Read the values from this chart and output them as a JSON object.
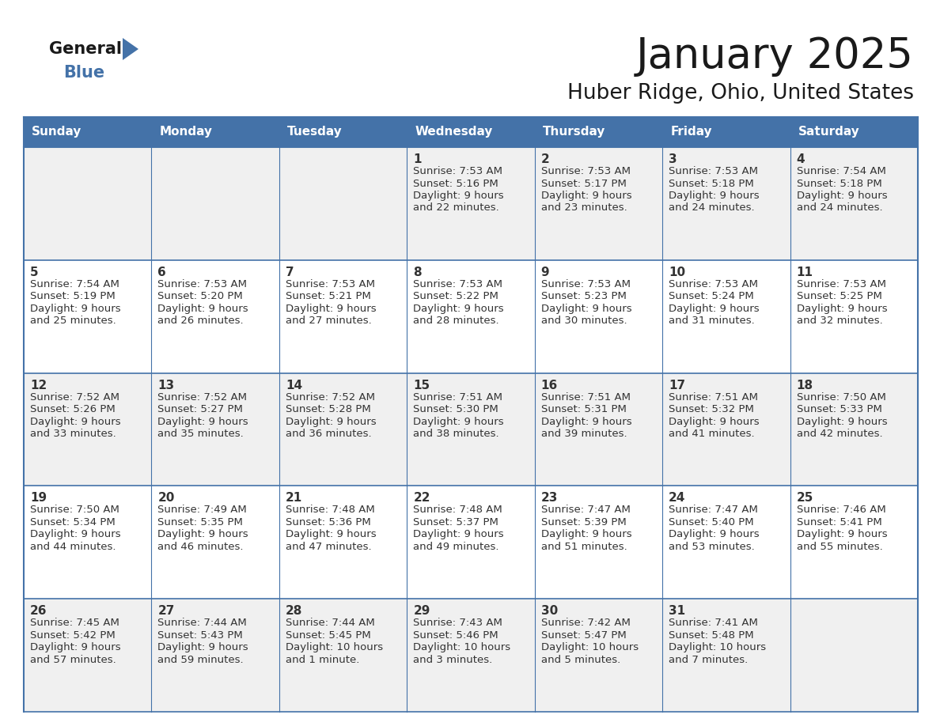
{
  "title": "January 2025",
  "subtitle": "Huber Ridge, Ohio, United States",
  "days_of_week": [
    "Sunday",
    "Monday",
    "Tuesday",
    "Wednesday",
    "Thursday",
    "Friday",
    "Saturday"
  ],
  "header_bg": "#4472A8",
  "header_text": "#FFFFFF",
  "cell_bg_light": "#F0F0F0",
  "cell_bg_white": "#FFFFFF",
  "border_color": "#4472A8",
  "text_color": "#333333",
  "title_color": "#1a1a1a",
  "logo_general_color": "#1a1a1a",
  "logo_blue_color": "#4472A8",
  "logo_triangle_color": "#4472A8",
  "days": [
    {
      "day": 1,
      "col": 3,
      "row": 0,
      "sunrise": "7:53 AM",
      "sunset": "5:16 PM",
      "daylight_line1": "Daylight: 9 hours",
      "daylight_line2": "and 22 minutes."
    },
    {
      "day": 2,
      "col": 4,
      "row": 0,
      "sunrise": "7:53 AM",
      "sunset": "5:17 PM",
      "daylight_line1": "Daylight: 9 hours",
      "daylight_line2": "and 23 minutes."
    },
    {
      "day": 3,
      "col": 5,
      "row": 0,
      "sunrise": "7:53 AM",
      "sunset": "5:18 PM",
      "daylight_line1": "Daylight: 9 hours",
      "daylight_line2": "and 24 minutes."
    },
    {
      "day": 4,
      "col": 6,
      "row": 0,
      "sunrise": "7:54 AM",
      "sunset": "5:18 PM",
      "daylight_line1": "Daylight: 9 hours",
      "daylight_line2": "and 24 minutes."
    },
    {
      "day": 5,
      "col": 0,
      "row": 1,
      "sunrise": "7:54 AM",
      "sunset": "5:19 PM",
      "daylight_line1": "Daylight: 9 hours",
      "daylight_line2": "and 25 minutes."
    },
    {
      "day": 6,
      "col": 1,
      "row": 1,
      "sunrise": "7:53 AM",
      "sunset": "5:20 PM",
      "daylight_line1": "Daylight: 9 hours",
      "daylight_line2": "and 26 minutes."
    },
    {
      "day": 7,
      "col": 2,
      "row": 1,
      "sunrise": "7:53 AM",
      "sunset": "5:21 PM",
      "daylight_line1": "Daylight: 9 hours",
      "daylight_line2": "and 27 minutes."
    },
    {
      "day": 8,
      "col": 3,
      "row": 1,
      "sunrise": "7:53 AM",
      "sunset": "5:22 PM",
      "daylight_line1": "Daylight: 9 hours",
      "daylight_line2": "and 28 minutes."
    },
    {
      "day": 9,
      "col": 4,
      "row": 1,
      "sunrise": "7:53 AM",
      "sunset": "5:23 PM",
      "daylight_line1": "Daylight: 9 hours",
      "daylight_line2": "and 30 minutes."
    },
    {
      "day": 10,
      "col": 5,
      "row": 1,
      "sunrise": "7:53 AM",
      "sunset": "5:24 PM",
      "daylight_line1": "Daylight: 9 hours",
      "daylight_line2": "and 31 minutes."
    },
    {
      "day": 11,
      "col": 6,
      "row": 1,
      "sunrise": "7:53 AM",
      "sunset": "5:25 PM",
      "daylight_line1": "Daylight: 9 hours",
      "daylight_line2": "and 32 minutes."
    },
    {
      "day": 12,
      "col": 0,
      "row": 2,
      "sunrise": "7:52 AM",
      "sunset": "5:26 PM",
      "daylight_line1": "Daylight: 9 hours",
      "daylight_line2": "and 33 minutes."
    },
    {
      "day": 13,
      "col": 1,
      "row": 2,
      "sunrise": "7:52 AM",
      "sunset": "5:27 PM",
      "daylight_line1": "Daylight: 9 hours",
      "daylight_line2": "and 35 minutes."
    },
    {
      "day": 14,
      "col": 2,
      "row": 2,
      "sunrise": "7:52 AM",
      "sunset": "5:28 PM",
      "daylight_line1": "Daylight: 9 hours",
      "daylight_line2": "and 36 minutes."
    },
    {
      "day": 15,
      "col": 3,
      "row": 2,
      "sunrise": "7:51 AM",
      "sunset": "5:30 PM",
      "daylight_line1": "Daylight: 9 hours",
      "daylight_line2": "and 38 minutes."
    },
    {
      "day": 16,
      "col": 4,
      "row": 2,
      "sunrise": "7:51 AM",
      "sunset": "5:31 PM",
      "daylight_line1": "Daylight: 9 hours",
      "daylight_line2": "and 39 minutes."
    },
    {
      "day": 17,
      "col": 5,
      "row": 2,
      "sunrise": "7:51 AM",
      "sunset": "5:32 PM",
      "daylight_line1": "Daylight: 9 hours",
      "daylight_line2": "and 41 minutes."
    },
    {
      "day": 18,
      "col": 6,
      "row": 2,
      "sunrise": "7:50 AM",
      "sunset": "5:33 PM",
      "daylight_line1": "Daylight: 9 hours",
      "daylight_line2": "and 42 minutes."
    },
    {
      "day": 19,
      "col": 0,
      "row": 3,
      "sunrise": "7:50 AM",
      "sunset": "5:34 PM",
      "daylight_line1": "Daylight: 9 hours",
      "daylight_line2": "and 44 minutes."
    },
    {
      "day": 20,
      "col": 1,
      "row": 3,
      "sunrise": "7:49 AM",
      "sunset": "5:35 PM",
      "daylight_line1": "Daylight: 9 hours",
      "daylight_line2": "and 46 minutes."
    },
    {
      "day": 21,
      "col": 2,
      "row": 3,
      "sunrise": "7:48 AM",
      "sunset": "5:36 PM",
      "daylight_line1": "Daylight: 9 hours",
      "daylight_line2": "and 47 minutes."
    },
    {
      "day": 22,
      "col": 3,
      "row": 3,
      "sunrise": "7:48 AM",
      "sunset": "5:37 PM",
      "daylight_line1": "Daylight: 9 hours",
      "daylight_line2": "and 49 minutes."
    },
    {
      "day": 23,
      "col": 4,
      "row": 3,
      "sunrise": "7:47 AM",
      "sunset": "5:39 PM",
      "daylight_line1": "Daylight: 9 hours",
      "daylight_line2": "and 51 minutes."
    },
    {
      "day": 24,
      "col": 5,
      "row": 3,
      "sunrise": "7:47 AM",
      "sunset": "5:40 PM",
      "daylight_line1": "Daylight: 9 hours",
      "daylight_line2": "and 53 minutes."
    },
    {
      "day": 25,
      "col": 6,
      "row": 3,
      "sunrise": "7:46 AM",
      "sunset": "5:41 PM",
      "daylight_line1": "Daylight: 9 hours",
      "daylight_line2": "and 55 minutes."
    },
    {
      "day": 26,
      "col": 0,
      "row": 4,
      "sunrise": "7:45 AM",
      "sunset": "5:42 PM",
      "daylight_line1": "Daylight: 9 hours",
      "daylight_line2": "and 57 minutes."
    },
    {
      "day": 27,
      "col": 1,
      "row": 4,
      "sunrise": "7:44 AM",
      "sunset": "5:43 PM",
      "daylight_line1": "Daylight: 9 hours",
      "daylight_line2": "and 59 minutes."
    },
    {
      "day": 28,
      "col": 2,
      "row": 4,
      "sunrise": "7:44 AM",
      "sunset": "5:45 PM",
      "daylight_line1": "Daylight: 10 hours",
      "daylight_line2": "and 1 minute."
    },
    {
      "day": 29,
      "col": 3,
      "row": 4,
      "sunrise": "7:43 AM",
      "sunset": "5:46 PM",
      "daylight_line1": "Daylight: 10 hours",
      "daylight_line2": "and 3 minutes."
    },
    {
      "day": 30,
      "col": 4,
      "row": 4,
      "sunrise": "7:42 AM",
      "sunset": "5:47 PM",
      "daylight_line1": "Daylight: 10 hours",
      "daylight_line2": "and 5 minutes."
    },
    {
      "day": 31,
      "col": 5,
      "row": 4,
      "sunrise": "7:41 AM",
      "sunset": "5:48 PM",
      "daylight_line1": "Daylight: 10 hours",
      "daylight_line2": "and 7 minutes."
    }
  ]
}
